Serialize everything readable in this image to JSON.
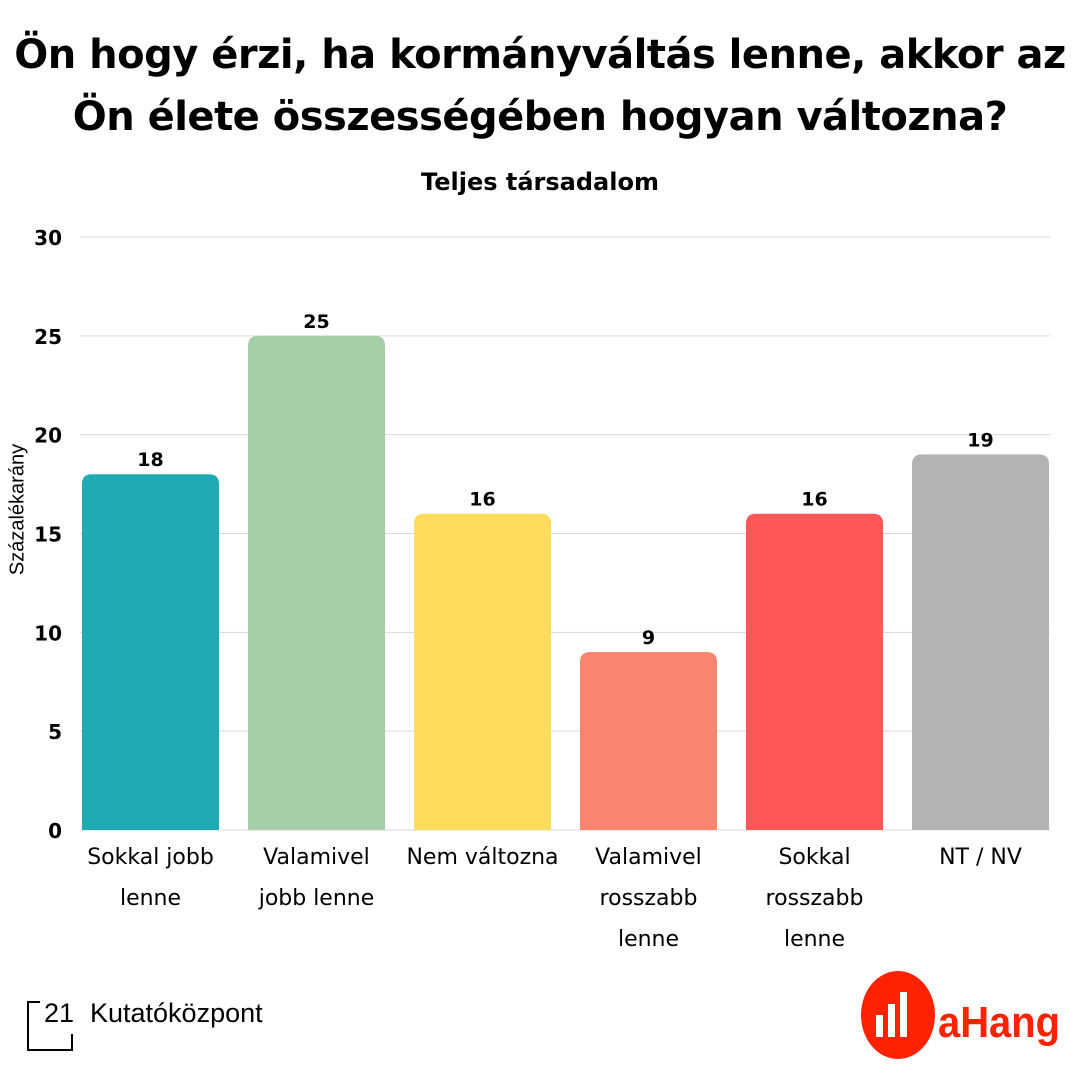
{
  "chart_data": {
    "type": "bar",
    "title_lines": [
      "Ön hogy érzi, ha kormányváltás lenne, akkor az",
      "Ön élete összességében hogyan változna?"
    ],
    "subtitle": "Teljes társadalom",
    "ylabel": "Százalékarány",
    "ylim": [
      0,
      30
    ],
    "yticks": [
      0,
      5,
      10,
      15,
      20,
      25,
      30
    ],
    "grid": true,
    "categories": [
      [
        "Sokkal jobb",
        "lenne"
      ],
      [
        "Valamivel",
        "jobb lenne"
      ],
      [
        "Nem változna"
      ],
      [
        "Valamivel",
        "rosszabb",
        "lenne"
      ],
      [
        "Sokkal",
        "rosszabb",
        "lenne"
      ],
      [
        "NT / NV"
      ]
    ],
    "values": [
      18,
      25,
      16,
      9,
      16,
      19
    ],
    "colors": [
      "#1eabb3",
      "#a4cfa9",
      "#ffdc5b",
      "#f88570",
      "#ff5757",
      "#b3b3b3"
    ]
  },
  "logos": {
    "left": {
      "mark": "21",
      "text": "Kutatóközpont"
    },
    "right": {
      "text": "aHang",
      "color": "#ff2200"
    }
  }
}
